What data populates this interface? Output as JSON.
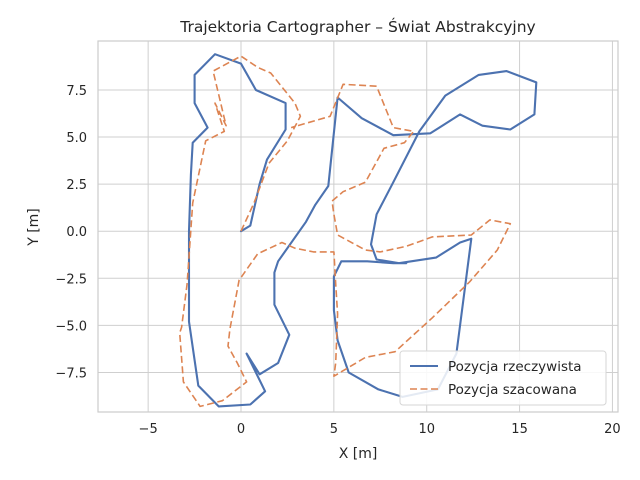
{
  "chart_data": {
    "type": "line",
    "title": "Trajektoria Cartographer – Świat Abstrakcyjny",
    "xlabel": "X [m]",
    "ylabel": "Y [m]",
    "xlim": [
      -7.7,
      20.3
    ],
    "ylim": [
      -9.6,
      10.1
    ],
    "xticks": [
      -5,
      0,
      5,
      10,
      15,
      20
    ],
    "xtick_labels": [
      "−5",
      "0",
      "5",
      "10",
      "15",
      "20"
    ],
    "yticks": [
      -7.5,
      -5.0,
      -2.5,
      0.0,
      2.5,
      5.0,
      7.5
    ],
    "ytick_labels": [
      "−7.5",
      "−5.0",
      "−2.5",
      "0.0",
      "2.5",
      "5.0",
      "7.5"
    ],
    "grid": true,
    "legend_position": "lower-right",
    "series": [
      {
        "name": "Pozycja rzeczywista",
        "color": "#4c72b0",
        "style": "solid",
        "x": [
          0.0,
          0.5,
          1.0,
          1.4,
          2.4,
          2.4,
          0.8,
          0.0,
          -1.4,
          -2.5,
          -2.5,
          -1.8,
          -2.6,
          -2.7,
          -2.8,
          -2.8,
          -2.3,
          -1.2,
          0.5,
          1.3,
          0.3,
          1.0,
          2.0,
          2.6,
          2.6,
          1.8,
          1.8,
          2.0,
          3.5,
          4.0,
          4.7,
          5.2,
          6.5,
          8.2,
          10.2,
          11.8,
          13.0,
          14.5,
          15.8,
          15.9,
          14.3,
          12.8,
          11.0,
          9.6,
          8.2,
          7.3,
          7.0,
          7.3,
          8.5,
          10.5,
          11.8,
          12.4,
          11.6,
          10.6,
          8.7,
          7.4,
          5.8,
          5.2,
          5.0,
          5.0,
          5.4,
          6.8,
          8.2,
          8.9
        ],
        "y": [
          0.0,
          0.3,
          2.5,
          3.8,
          5.4,
          6.8,
          7.5,
          8.9,
          9.4,
          8.3,
          6.8,
          5.5,
          4.7,
          3.0,
          0.0,
          -4.8,
          -8.2,
          -9.3,
          -9.2,
          -8.5,
          -6.5,
          -7.6,
          -7.0,
          -5.5,
          -5.5,
          -3.9,
          -2.2,
          -1.6,
          0.5,
          1.4,
          2.4,
          7.1,
          6.0,
          5.1,
          5.2,
          6.2,
          5.6,
          5.4,
          6.2,
          7.9,
          8.5,
          8.3,
          7.2,
          5.3,
          2.6,
          0.9,
          -0.7,
          -1.5,
          -1.7,
          -1.4,
          -0.6,
          -0.4,
          -6.5,
          -8.4,
          -8.8,
          -8.4,
          -7.5,
          -5.8,
          -4.2,
          -2.4,
          -1.6,
          -1.6,
          -1.7,
          -1.7
        ]
      },
      {
        "name": "Pozycja szacowana",
        "color": "#dd8452",
        "style": "dashed",
        "x": [
          0.0,
          0.7,
          1.5,
          2.5,
          3.2,
          2.9,
          1.6,
          0.9,
          0.0,
          -1.5,
          -0.8,
          -1.4,
          -0.9,
          -1.9,
          -2.6,
          -2.9,
          -3.2,
          -3.3,
          -3.1,
          -2.2,
          -1.0,
          0.3,
          -0.2,
          -0.7,
          -0.6,
          -0.1,
          0.9,
          2.2,
          2.9,
          3.9,
          5.0,
          5.1,
          5.2,
          5.1,
          5.0,
          6.7,
          8.3,
          10.3,
          12.3,
          13.8,
          14.5,
          13.4,
          12.4,
          10.3,
          8.9,
          7.5,
          6.7,
          5.2,
          5.0,
          4.9,
          5.5,
          6.7,
          7.7,
          8.8,
          9.3,
          8.2,
          7.3,
          5.5,
          4.8,
          2.7
        ],
        "y": [
          0.0,
          1.5,
          3.6,
          4.8,
          6.1,
          6.8,
          8.4,
          8.7,
          9.3,
          8.5,
          5.6,
          6.8,
          5.3,
          4.8,
          1.5,
          -2.8,
          -5.1,
          -5.4,
          -8.0,
          -9.3,
          -9.0,
          -8.0,
          -7.0,
          -6.1,
          -5.2,
          -2.6,
          -1.2,
          -0.6,
          -0.9,
          -1.1,
          -1.1,
          -2.8,
          -4.4,
          -7.0,
          -7.7,
          -6.7,
          -6.4,
          -4.6,
          -2.7,
          -1.0,
          0.4,
          0.6,
          -0.2,
          -0.3,
          -0.8,
          -1.1,
          -1.0,
          -0.2,
          0.9,
          1.6,
          2.1,
          2.6,
          4.4,
          4.7,
          5.3,
          5.5,
          7.7,
          7.8,
          6.1,
          5.5
        ]
      }
    ]
  }
}
